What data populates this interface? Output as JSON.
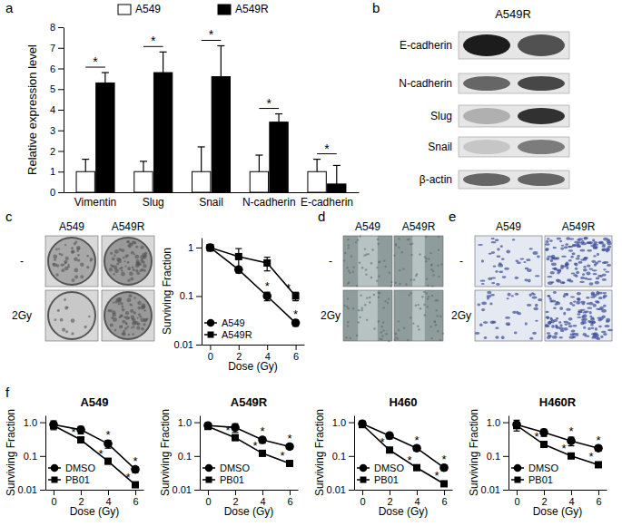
{
  "chart_data": [
    {
      "type": "bar",
      "panel_label": "a",
      "categories": [
        "Vimentin",
        "Slug",
        "Snail",
        "N-cadherin",
        "E-cadherin"
      ],
      "series": [
        {
          "name": "A549",
          "color": "#ffffff",
          "values": [
            1,
            1,
            1,
            1,
            1
          ],
          "errors": [
            0.6,
            0.5,
            1.2,
            0.8,
            0.6
          ]
        },
        {
          "name": "A549R",
          "color": "#000000",
          "values": [
            5.3,
            5.8,
            5.6,
            3.4,
            0.4
          ],
          "errors": [
            0.5,
            1.0,
            1.5,
            0.4,
            0.9
          ]
        }
      ],
      "significance": [
        "*",
        "*",
        "*",
        "*",
        "*"
      ],
      "y_label": "Relative expression level",
      "ylim": [
        0,
        8
      ],
      "yticks": [
        0,
        1,
        2,
        3,
        4,
        5,
        6,
        7,
        8
      ],
      "legend": "top"
    },
    {
      "type": "line",
      "log": "y",
      "x": [
        0,
        2,
        4,
        6
      ],
      "xlim": [
        -0.6,
        6.6
      ],
      "xticks": [
        0,
        2,
        4,
        6
      ],
      "ylim": [
        0.01,
        1.6
      ],
      "yticks": [
        0.01,
        0.1,
        1
      ],
      "x_label": "Dose (Gy)",
      "y_label": "Surviving Fraction",
      "legend": "lower left",
      "series": [
        {
          "name": "A549",
          "color": "#000000",
          "marker": "circle",
          "values": [
            1,
            0.35,
            0.1,
            0.028
          ],
          "errors": [
            0.15,
            0.05,
            0.02,
            0.004
          ],
          "significance": [
            null,
            null,
            "*",
            "*"
          ]
        },
        {
          "name": "A549R",
          "color": "#000000",
          "marker": "square",
          "values": [
            1,
            0.65,
            0.48,
            0.1
          ],
          "errors": [
            0.15,
            0.3,
            0.15,
            0.02
          ],
          "significance": [
            null,
            null,
            null,
            "*"
          ]
        }
      ]
    },
    {
      "type": "line",
      "log": "y",
      "panel_label": "f",
      "title": "A549",
      "x": [
        0,
        2,
        4,
        6
      ],
      "xlim": [
        -0.6,
        6.6
      ],
      "xticks": [
        0,
        2,
        4,
        6
      ],
      "ylim": [
        0.01,
        1.6
      ],
      "yticks": [
        0.01,
        0.1,
        {
          "value": 1,
          "label": "1.0"
        }
      ],
      "x_label": "Dose (Gy)",
      "y_label": "Surviving Fraction",
      "legend": "lower left",
      "series": [
        {
          "name": "DMSO",
          "color": "#000000",
          "marker": "circle",
          "values": [
            0.85,
            0.6,
            0.23,
            0.04
          ],
          "errors": [
            0.25,
            0.15,
            0.06,
            0.008
          ],
          "significance": [
            null,
            null,
            "*",
            "*"
          ]
        },
        {
          "name": "PB01",
          "color": "#000000",
          "marker": "square",
          "values": [
            0.8,
            0.3,
            0.07,
            0.014
          ],
          "errors": [
            0.15,
            0.05,
            0.012,
            0.002
          ],
          "significance": [
            null,
            "*",
            "*",
            "*"
          ]
        }
      ]
    },
    {
      "type": "line",
      "log": "y",
      "title": "A549R",
      "x": [
        0,
        2,
        4,
        6
      ],
      "xlim": [
        -0.6,
        6.6
      ],
      "xticks": [
        0,
        2,
        4,
        6
      ],
      "ylim": [
        0.01,
        1.6
      ],
      "yticks": [
        0.01,
        0.1,
        {
          "value": 1,
          "label": "1.0"
        }
      ],
      "x_label": "Dose (Gy)",
      "y_label": "Surviving Fraction",
      "legend": "lower left",
      "series": [
        {
          "name": "DMSO",
          "color": "#000000",
          "marker": "circle",
          "values": [
            0.8,
            0.7,
            0.3,
            0.19
          ],
          "errors": [
            0.15,
            0.2,
            0.06,
            0.03
          ],
          "significance": [
            null,
            null,
            "*",
            "*"
          ]
        },
        {
          "name": "PB01",
          "color": "#000000",
          "marker": "square",
          "values": [
            0.75,
            0.35,
            0.12,
            0.06
          ],
          "errors": [
            0.12,
            0.06,
            0.02,
            0.01
          ],
          "significance": [
            null,
            "*",
            "*",
            "*"
          ]
        }
      ]
    },
    {
      "type": "line",
      "log": "y",
      "title": "H460",
      "x": [
        0,
        2,
        4,
        6
      ],
      "xlim": [
        -0.6,
        6.6
      ],
      "xticks": [
        0,
        2,
        4,
        6
      ],
      "ylim": [
        0.01,
        1.6
      ],
      "yticks": [
        0.01,
        0.1,
        {
          "value": 1,
          "label": "1.0"
        }
      ],
      "x_label": "Dose (Gy)",
      "y_label": "Surviving Fraction",
      "legend": "lower left",
      "series": [
        {
          "name": "DMSO",
          "color": "#000000",
          "marker": "circle",
          "values": [
            0.9,
            0.4,
            0.17,
            0.045
          ],
          "errors": [
            0.2,
            0.08,
            0.03,
            0.008
          ],
          "significance": [
            null,
            null,
            "*",
            "*"
          ]
        },
        {
          "name": "PB01",
          "color": "#000000",
          "marker": "square",
          "values": [
            0.85,
            0.15,
            0.045,
            0.015
          ],
          "errors": [
            0.15,
            0.02,
            0.006,
            0.002
          ],
          "significance": [
            null,
            "*",
            "*",
            "*"
          ]
        }
      ]
    },
    {
      "type": "line",
      "log": "y",
      "title": "H460R",
      "x": [
        0,
        2,
        4,
        6
      ],
      "xlim": [
        -0.6,
        6.6
      ],
      "xticks": [
        0,
        2,
        4,
        6
      ],
      "ylim": [
        0.01,
        1.6
      ],
      "yticks": [
        0.01,
        0.1,
        {
          "value": 1,
          "label": "1.0"
        }
      ],
      "x_label": "Dose (Gy)",
      "y_label": "Surviving Fraction",
      "legend": "lower left",
      "series": [
        {
          "name": "DMSO",
          "color": "#000000",
          "marker": "circle",
          "values": [
            0.85,
            0.5,
            0.28,
            0.17
          ],
          "errors": [
            0.3,
            0.12,
            0.08,
            0.03
          ],
          "significance": [
            null,
            null,
            "*",
            "*"
          ]
        },
        {
          "name": "PB01",
          "color": "#000000",
          "marker": "square",
          "values": [
            0.8,
            0.22,
            0.1,
            0.055
          ],
          "errors": [
            0.15,
            0.04,
            0.015,
            0.006
          ],
          "significance": [
            null,
            "*",
            "*",
            "*"
          ]
        }
      ]
    }
  ],
  "blot": {
    "label": "b",
    "title": "A549R",
    "rows": [
      "E-cadherin",
      "N-cadherin",
      "Slug",
      "Snail",
      "β-actin"
    ]
  },
  "image_panels": [
    {
      "label": "c",
      "columns": [
        "A549",
        "A549R"
      ],
      "rows": [
        "-",
        "2Gy"
      ]
    },
    {
      "label": "d",
      "columns": [
        "A549",
        "A549R"
      ],
      "rows": [
        "-",
        "2Gy"
      ]
    },
    {
      "label": "e",
      "columns": [
        "A549",
        "A549R"
      ],
      "rows": [
        "-",
        "2Gy"
      ]
    }
  ]
}
